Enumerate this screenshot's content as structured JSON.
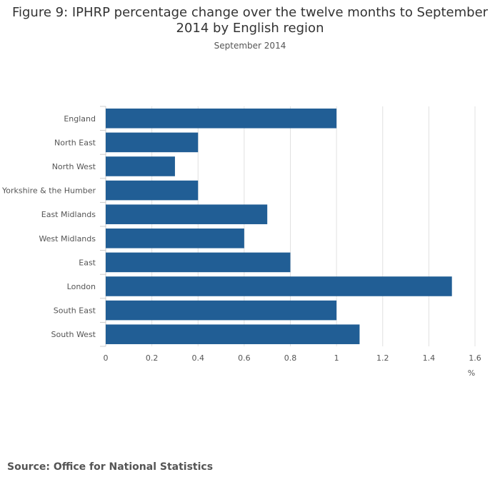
{
  "title": "Figure 9: IPHRP percentage change over the twelve months to September 2014 by English region",
  "subtitle": "September 2014",
  "source": "Source: Office for National Statistics",
  "chart_data": {
    "type": "bar",
    "orientation": "horizontal",
    "title": "Figure 9: IPHRP percentage change over the twelve months to September 2014 by English region",
    "subtitle": "September 2014",
    "categories": [
      "England",
      "North East",
      "North West",
      "Yorkshire & the Humber",
      "East Midlands",
      "West Midlands",
      "East",
      "London",
      "South East",
      "South West"
    ],
    "values": [
      1.0,
      0.4,
      0.3,
      0.4,
      0.7,
      0.6,
      0.8,
      1.5,
      1.0,
      1.1
    ],
    "xlabel": "%",
    "ylabel": "",
    "xlim": [
      0,
      1.6
    ],
    "ticks": [
      "0",
      "0.2",
      "0.4",
      "0.6",
      "0.8",
      "1",
      "1.2",
      "1.4",
      "1.6"
    ],
    "grid": true,
    "legend": "none",
    "bar_color": "#215e95"
  }
}
